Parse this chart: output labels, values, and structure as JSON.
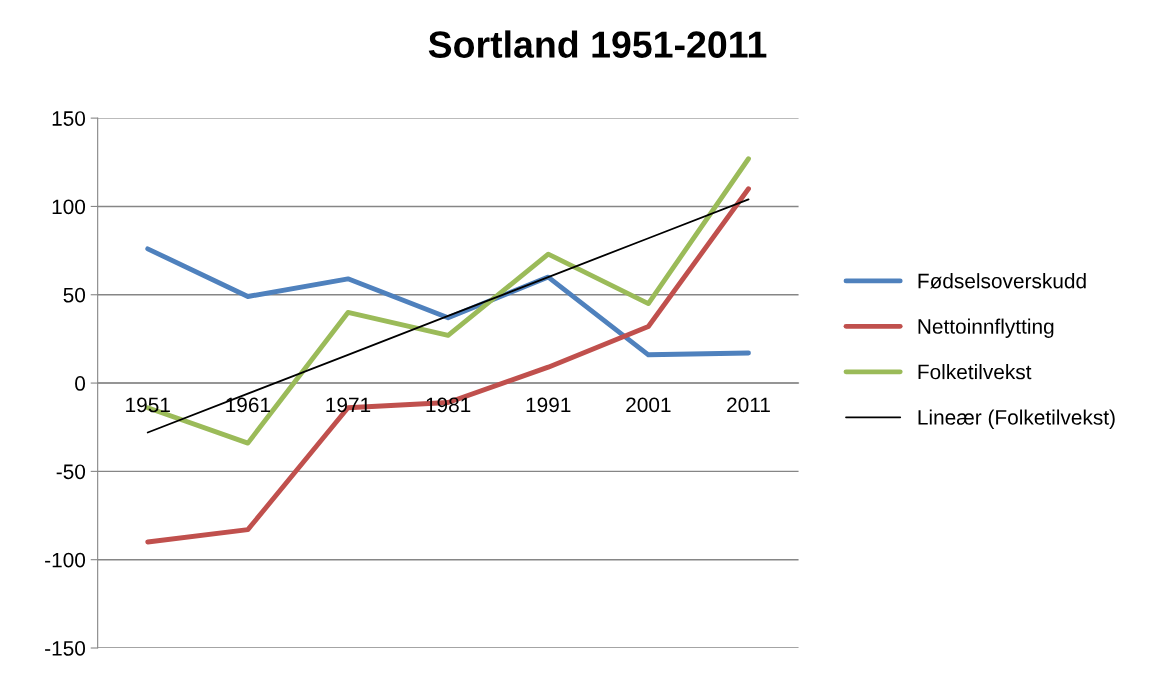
{
  "chart_data": {
    "type": "line",
    "title": "Sortland 1951-2011",
    "categories": [
      "1951",
      "1961",
      "1971",
      "1981",
      "1991",
      "2001",
      "2011"
    ],
    "series": [
      {
        "name": "Fødselsoverskudd",
        "color": "#4f81bd",
        "values": [
          76,
          49,
          59,
          37,
          60,
          16,
          17
        ]
      },
      {
        "name": "Nettoinnflytting",
        "color": "#c0504d",
        "values": [
          -90,
          -83,
          -14,
          -11,
          9,
          32,
          110
        ]
      },
      {
        "name": "Folketilvekst",
        "color": "#9bbb59",
        "values": [
          -14,
          -34,
          40,
          27,
          73,
          45,
          127
        ]
      },
      {
        "name": "Lineær (Folketilvekst)",
        "color": "#000000",
        "type": "line",
        "values": [
          -28,
          -6,
          16,
          38,
          60,
          82,
          104
        ]
      }
    ],
    "ylim": [
      -150,
      150
    ],
    "yticks": [
      -150,
      -100,
      -50,
      0,
      50,
      100,
      150
    ],
    "grid": "y",
    "legend": "right",
    "marker": "none",
    "line_style": "solid"
  }
}
